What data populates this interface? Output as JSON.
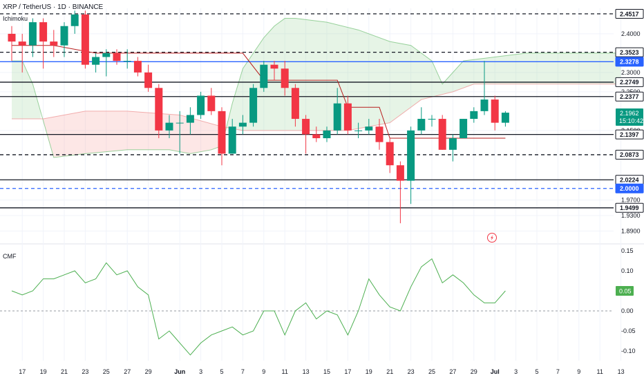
{
  "header": {
    "title": "XRP / TetherUS · 1D · BINANCE",
    "indicator_main": "Ichimoku",
    "indicator_sub": "CMF",
    "countdown": "15:10:42"
  },
  "colors": {
    "up": "#089981",
    "down": "#f23645",
    "cloud_bull": "#a5d6a7",
    "cloud_bear": "#f7a9a7",
    "kijun": "#b71c1c",
    "blue_level": "#2962ff",
    "cmf": "#4caf50",
    "grid": "#f0f3fa"
  },
  "chart_data": [
    {
      "type": "candlestick",
      "title": "XRP / TetherUS · 1D · BINANCE",
      "x_ticks": [
        "17",
        "19",
        "21",
        "23",
        "25",
        "27",
        "29",
        "Jun",
        "3",
        "5",
        "7",
        "9",
        "11",
        "13",
        "15",
        "17",
        "19",
        "21",
        "23",
        "25",
        "27",
        "29",
        "Jul",
        "3",
        "5",
        "7",
        "9",
        "11",
        "13"
      ],
      "y_ticks": [
        "2.4000",
        "2.3000",
        "2.2500",
        "2.1500",
        "1.9700",
        "1.9300",
        "1.8900"
      ],
      "ylim": [
        1.875,
        2.46
      ],
      "candles": [
        {
          "date": "May 16",
          "o": 2.4,
          "h": 2.42,
          "l": 2.33,
          "c": 2.38
        },
        {
          "date": "May 17",
          "o": 2.38,
          "h": 2.4,
          "l": 2.3,
          "c": 2.37
        },
        {
          "date": "May 18",
          "o": 2.37,
          "h": 2.44,
          "l": 2.34,
          "c": 2.43
        },
        {
          "date": "May 19",
          "o": 2.43,
          "h": 2.44,
          "l": 2.31,
          "c": 2.38
        },
        {
          "date": "May 20",
          "o": 2.38,
          "h": 2.41,
          "l": 2.34,
          "c": 2.37
        },
        {
          "date": "May 21",
          "o": 2.37,
          "h": 2.43,
          "l": 2.34,
          "c": 2.42
        },
        {
          "date": "May 22",
          "o": 2.42,
          "h": 2.46,
          "l": 2.4,
          "c": 2.45
        },
        {
          "date": "May 23",
          "o": 2.45,
          "h": 2.46,
          "l": 2.31,
          "c": 2.32
        },
        {
          "date": "May 24",
          "o": 2.32,
          "h": 2.35,
          "l": 2.3,
          "c": 2.34
        },
        {
          "date": "May 25",
          "o": 2.34,
          "h": 2.36,
          "l": 2.29,
          "c": 2.35
        },
        {
          "date": "May 26",
          "o": 2.35,
          "h": 2.36,
          "l": 2.32,
          "c": 2.33
        },
        {
          "date": "May 27",
          "o": 2.33,
          "h": 2.36,
          "l": 2.31,
          "c": 2.33
        },
        {
          "date": "May 28",
          "o": 2.33,
          "h": 2.34,
          "l": 2.29,
          "c": 2.3
        },
        {
          "date": "May 29",
          "o": 2.3,
          "h": 2.32,
          "l": 2.25,
          "c": 2.26
        },
        {
          "date": "May 30",
          "o": 2.26,
          "h": 2.27,
          "l": 2.13,
          "c": 2.15
        },
        {
          "date": "May 31",
          "o": 2.15,
          "h": 2.19,
          "l": 2.13,
          "c": 2.17
        },
        {
          "date": "Jun 1",
          "o": 2.17,
          "h": 2.2,
          "l": 2.09,
          "c": 2.17
        },
        {
          "date": "Jun 2",
          "o": 2.17,
          "h": 2.21,
          "l": 2.14,
          "c": 2.19
        },
        {
          "date": "Jun 3",
          "o": 2.19,
          "h": 2.25,
          "l": 2.18,
          "c": 2.24
        },
        {
          "date": "Jun 4",
          "o": 2.24,
          "h": 2.26,
          "l": 2.19,
          "c": 2.2
        },
        {
          "date": "Jun 5",
          "o": 2.2,
          "h": 2.21,
          "l": 2.06,
          "c": 2.09
        },
        {
          "date": "Jun 6",
          "o": 2.09,
          "h": 2.18,
          "l": 2.09,
          "c": 2.16
        },
        {
          "date": "Jun 7",
          "o": 2.16,
          "h": 2.19,
          "l": 2.14,
          "c": 2.17
        },
        {
          "date": "Jun 8",
          "o": 2.17,
          "h": 2.27,
          "l": 2.16,
          "c": 2.26
        },
        {
          "date": "Jun 9",
          "o": 2.26,
          "h": 2.33,
          "l": 2.25,
          "c": 2.32
        },
        {
          "date": "Jun 10",
          "o": 2.32,
          "h": 2.33,
          "l": 2.28,
          "c": 2.31
        },
        {
          "date": "Jun 11",
          "o": 2.31,
          "h": 2.33,
          "l": 2.24,
          "c": 2.26
        },
        {
          "date": "Jun 12",
          "o": 2.26,
          "h": 2.27,
          "l": 2.16,
          "c": 2.18
        },
        {
          "date": "Jun 13",
          "o": 2.18,
          "h": 2.19,
          "l": 2.09,
          "c": 2.14
        },
        {
          "date": "Jun 14",
          "o": 2.14,
          "h": 2.16,
          "l": 2.12,
          "c": 2.13
        },
        {
          "date": "Jun 15",
          "o": 2.13,
          "h": 2.16,
          "l": 2.12,
          "c": 2.15
        },
        {
          "date": "Jun 16",
          "o": 2.15,
          "h": 2.26,
          "l": 2.14,
          "c": 2.22
        },
        {
          "date": "Jun 17",
          "o": 2.22,
          "h": 2.24,
          "l": 2.14,
          "c": 2.15
        },
        {
          "date": "Jun 18",
          "o": 2.15,
          "h": 2.17,
          "l": 2.13,
          "c": 2.15
        },
        {
          "date": "Jun 19",
          "o": 2.15,
          "h": 2.18,
          "l": 2.14,
          "c": 2.16
        },
        {
          "date": "Jun 20",
          "o": 2.16,
          "h": 2.18,
          "l": 2.1,
          "c": 2.12
        },
        {
          "date": "Jun 21",
          "o": 2.12,
          "h": 2.13,
          "l": 2.04,
          "c": 2.06
        },
        {
          "date": "Jun 22",
          "o": 2.06,
          "h": 2.07,
          "l": 1.91,
          "c": 2.02
        },
        {
          "date": "Jun 23",
          "o": 2.02,
          "h": 2.16,
          "l": 1.96,
          "c": 2.15
        },
        {
          "date": "Jun 24",
          "o": 2.15,
          "h": 2.21,
          "l": 2.14,
          "c": 2.18
        },
        {
          "date": "Jun 25",
          "o": 2.18,
          "h": 2.19,
          "l": 2.16,
          "c": 2.18
        },
        {
          "date": "Jun 26",
          "o": 2.18,
          "h": 2.19,
          "l": 2.1,
          "c": 2.1
        },
        {
          "date": "Jun 27",
          "o": 2.1,
          "h": 2.14,
          "l": 2.07,
          "c": 2.13
        },
        {
          "date": "Jun 28",
          "o": 2.13,
          "h": 2.18,
          "l": 2.13,
          "c": 2.18
        },
        {
          "date": "Jun 29",
          "o": 2.18,
          "h": 2.21,
          "l": 2.17,
          "c": 2.2
        },
        {
          "date": "Jun 30",
          "o": 2.2,
          "h": 2.33,
          "l": 2.19,
          "c": 2.23
        },
        {
          "date": "Jul 1",
          "o": 2.23,
          "h": 2.24,
          "l": 2.15,
          "c": 2.17
        },
        {
          "date": "Jul 2",
          "o": 2.17,
          "h": 2.2,
          "l": 2.16,
          "c": 2.196
        }
      ],
      "kijun": [
        {
          "date": "May 16",
          "v": 2.37
        },
        {
          "date": "May 20",
          "v": 2.37
        },
        {
          "date": "May 24",
          "v": 2.35
        },
        {
          "date": "Jun 6",
          "v": 2.35
        },
        {
          "date": "Jun 7",
          "v": 2.35
        },
        {
          "date": "Jun 9",
          "v": 2.28
        },
        {
          "date": "Jun 16",
          "v": 2.28
        },
        {
          "date": "Jun 17",
          "v": 2.21
        },
        {
          "date": "Jun 20",
          "v": 2.21
        },
        {
          "date": "Jun 21",
          "v": 2.13
        },
        {
          "date": "Jul 2",
          "v": 2.13
        }
      ],
      "senkou_a": [
        {
          "date": "May 16",
          "v": 2.33
        },
        {
          "date": "May 17",
          "v": 2.33
        },
        {
          "date": "May 18",
          "v": 2.27
        },
        {
          "date": "May 20",
          "v": 2.08
        },
        {
          "date": "May 23",
          "v": 2.09
        },
        {
          "date": "May 27",
          "v": 2.1
        },
        {
          "date": "May 31",
          "v": 2.1
        },
        {
          "date": "Jun 2",
          "v": 2.09
        },
        {
          "date": "Jun 4",
          "v": 2.1
        },
        {
          "date": "Jun 5",
          "v": 2.11
        },
        {
          "date": "Jun 6",
          "v": 2.22
        },
        {
          "date": "Jun 7",
          "v": 2.31
        },
        {
          "date": "Jun 9",
          "v": 2.39
        },
        {
          "date": "Jun 10",
          "v": 2.42
        },
        {
          "date": "Jun 11",
          "v": 2.44
        },
        {
          "date": "Jun 12",
          "v": 2.44
        },
        {
          "date": "Jun 15",
          "v": 2.43
        },
        {
          "date": "Jun 18",
          "v": 2.41
        },
        {
          "date": "Jun 21",
          "v": 2.38
        },
        {
          "date": "Jun 23",
          "v": 2.37
        },
        {
          "date": "Jun 25",
          "v": 2.33
        },
        {
          "date": "Jun 26",
          "v": 2.27
        },
        {
          "date": "Jun 27",
          "v": 2.3
        },
        {
          "date": "Jun 28",
          "v": 2.33
        },
        {
          "date": "Jul 1",
          "v": 2.34
        },
        {
          "date": "Jul 4",
          "v": 2.35
        },
        {
          "date": "Jul 13",
          "v": 2.35
        }
      ],
      "senkou_b": [
        {
          "date": "May 16",
          "v": 2.18
        },
        {
          "date": "May 17",
          "v": 2.18
        },
        {
          "date": "May 19",
          "v": 2.18
        },
        {
          "date": "May 23",
          "v": 2.2
        },
        {
          "date": "May 27",
          "v": 2.2
        },
        {
          "date": "Jun 1",
          "v": 2.19
        },
        {
          "date": "Jun 5",
          "v": 2.16
        },
        {
          "date": "Jun 7",
          "v": 2.15
        },
        {
          "date": "Jun 12",
          "v": 2.15
        },
        {
          "date": "Jun 17",
          "v": 2.15
        },
        {
          "date": "Jun 21",
          "v": 2.17
        },
        {
          "date": "Jun 24",
          "v": 2.23
        },
        {
          "date": "Jun 27",
          "v": 2.25
        },
        {
          "date": "Jun 29",
          "v": 2.27
        },
        {
          "date": "Jul 2",
          "v": 2.27
        },
        {
          "date": "Jul 6",
          "v": 2.27
        },
        {
          "date": "Jul 13",
          "v": 2.27
        }
      ],
      "levels": [
        {
          "value": 2.4517,
          "label": "2.4517",
          "style": "dashed",
          "color": "#131722"
        },
        {
          "value": 2.3523,
          "label": "2.3523",
          "style": "dashed",
          "color": "#131722"
        },
        {
          "value": 2.3278,
          "label": "2.3278",
          "style": "solid",
          "color": "#2962ff"
        },
        {
          "value": 2.2749,
          "label": "2.2749",
          "style": "solid",
          "color": "#131722"
        },
        {
          "value": 2.2377,
          "label": "2.2377",
          "style": "solid",
          "color": "#131722"
        },
        {
          "value": 2.1397,
          "label": "2.1397",
          "style": "solid",
          "color": "#131722"
        },
        {
          "value": 2.0873,
          "label": "2.0873",
          "style": "dashed",
          "color": "#131722"
        },
        {
          "value": 2.0224,
          "label": "2.0224",
          "style": "solid",
          "color": "#131722"
        },
        {
          "value": 2.0,
          "label": "2.0000",
          "style": "dashed",
          "color": "#2962ff"
        },
        {
          "value": 1.9499,
          "label": "1.9499",
          "style": "solid",
          "color": "#131722"
        }
      ],
      "current_price": {
        "value": 2.1962,
        "label": "2.1962"
      }
    },
    {
      "type": "line",
      "title": "CMF",
      "y_ticks": [
        "0.15",
        "0.10",
        "0.05",
        "0.00",
        "-0.05",
        "-0.10"
      ],
      "ylim": [
        -0.125,
        0.17
      ],
      "zero_line": 0.0,
      "series": [
        {
          "values": [
            {
              "date": "May 16",
              "v": 0.05
            },
            {
              "date": "May 17",
              "v": 0.04
            },
            {
              "date": "May 18",
              "v": 0.05
            },
            {
              "date": "May 19",
              "v": 0.08
            },
            {
              "date": "May 20",
              "v": 0.08
            },
            {
              "date": "May 21",
              "v": 0.09
            },
            {
              "date": "May 22",
              "v": 0.1
            },
            {
              "date": "May 23",
              "v": 0.07
            },
            {
              "date": "May 24",
              "v": 0.08
            },
            {
              "date": "May 25",
              "v": 0.12
            },
            {
              "date": "May 26",
              "v": 0.09
            },
            {
              "date": "May 27",
              "v": 0.1
            },
            {
              "date": "May 28",
              "v": 0.06
            },
            {
              "date": "May 29",
              "v": 0.04
            },
            {
              "date": "May 30",
              "v": -0.07
            },
            {
              "date": "May 31",
              "v": -0.05
            },
            {
              "date": "Jun 1",
              "v": -0.08
            },
            {
              "date": "Jun 2",
              "v": -0.11
            },
            {
              "date": "Jun 3",
              "v": -0.08
            },
            {
              "date": "Jun 4",
              "v": -0.06
            },
            {
              "date": "Jun 5",
              "v": -0.05
            },
            {
              "date": "Jun 6",
              "v": -0.04
            },
            {
              "date": "Jun 7",
              "v": -0.06
            },
            {
              "date": "Jun 8",
              "v": -0.05
            },
            {
              "date": "Jun 9",
              "v": 0.0
            },
            {
              "date": "Jun 10",
              "v": 0.0
            },
            {
              "date": "Jun 11",
              "v": -0.06
            },
            {
              "date": "Jun 12",
              "v": 0.0
            },
            {
              "date": "Jun 13",
              "v": 0.02
            },
            {
              "date": "Jun 14",
              "v": -0.02
            },
            {
              "date": "Jun 15",
              "v": 0.0
            },
            {
              "date": "Jun 16",
              "v": -0.01
            },
            {
              "date": "Jun 17",
              "v": -0.06
            },
            {
              "date": "Jun 18",
              "v": 0.0
            },
            {
              "date": "Jun 19",
              "v": 0.08
            },
            {
              "date": "Jun 20",
              "v": 0.04
            },
            {
              "date": "Jun 21",
              "v": 0.01
            },
            {
              "date": "Jun 22",
              "v": 0.0
            },
            {
              "date": "Jun 23",
              "v": 0.06
            },
            {
              "date": "Jun 24",
              "v": 0.11
            },
            {
              "date": "Jun 25",
              "v": 0.13
            },
            {
              "date": "Jun 26",
              "v": 0.07
            },
            {
              "date": "Jun 27",
              "v": 0.09
            },
            {
              "date": "Jun 28",
              "v": 0.07
            },
            {
              "date": "Jun 29",
              "v": 0.04
            },
            {
              "date": "Jun 30",
              "v": 0.02
            },
            {
              "date": "Jul 1",
              "v": 0.02
            },
            {
              "date": "Jul 2",
              "v": 0.05
            }
          ]
        }
      ],
      "current_value": {
        "value": 0.05,
        "label": "0.05"
      }
    }
  ]
}
